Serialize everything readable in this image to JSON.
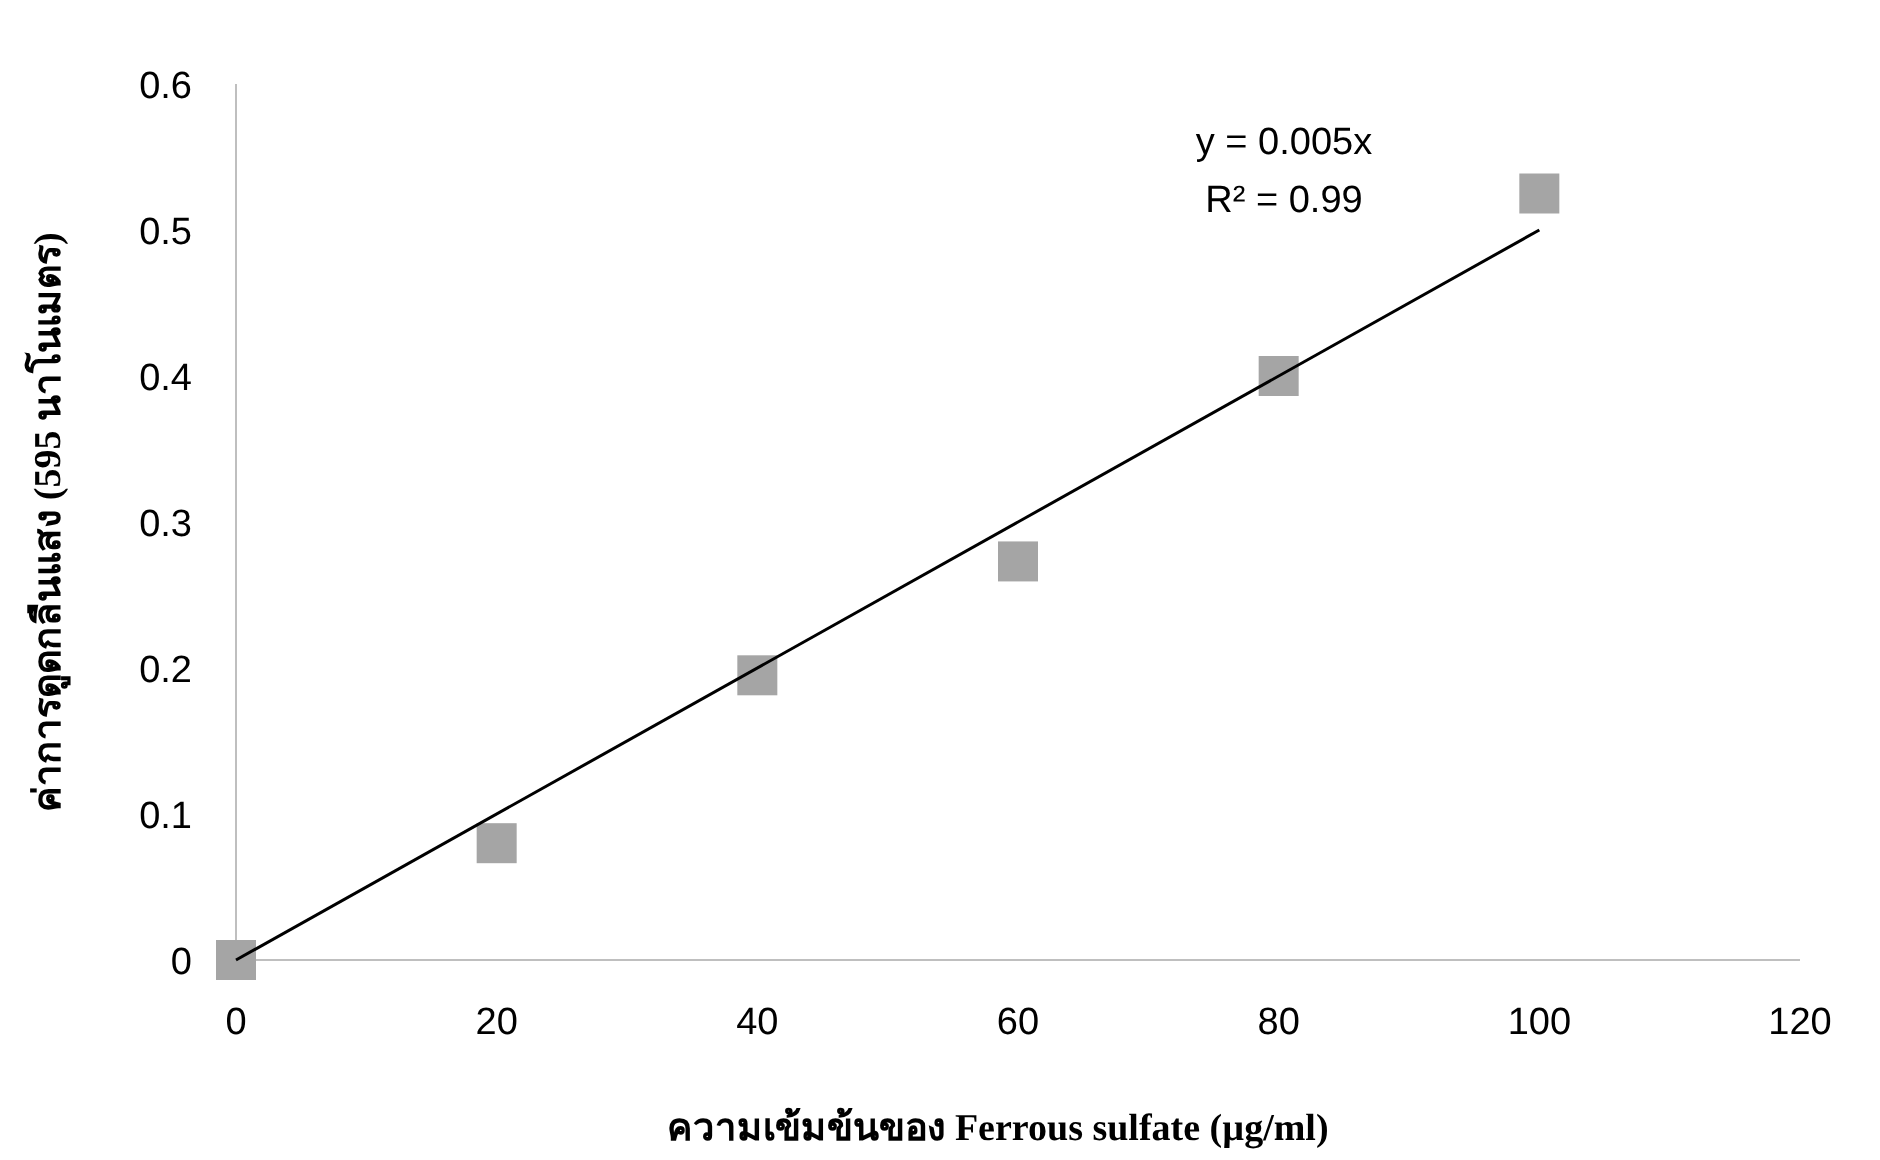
{
  "chart_data": {
    "type": "scatter",
    "xlabel": "ความเข้มข้นของ Ferrous sulfate (µg/ml)",
    "ylabel": "ค่าการดูดกลืนแสง (595 นาโนเมตร)",
    "annotations": [
      "y = 0.005x",
      "R² = 0.99"
    ],
    "xlim": [
      0,
      120
    ],
    "ylim": [
      0,
      0.6
    ],
    "xticks": [
      0,
      20,
      40,
      60,
      80,
      100,
      120
    ],
    "yticks": [
      0,
      0.1,
      0.2,
      0.3,
      0.4,
      0.5,
      0.6
    ],
    "grid": false,
    "series": [
      {
        "color": "#a5a5a5",
        "marker": "square",
        "x": [
          0,
          20,
          40,
          60,
          80,
          100
        ],
        "values": [
          0,
          0.08,
          0.195,
          0.273,
          0.4,
          0.525
        ]
      },
      {
        "type": "line",
        "color": "#000000",
        "marker": "none",
        "line_style": "solid",
        "x": [
          0,
          100
        ],
        "values": [
          0,
          0.5
        ]
      }
    ]
  }
}
